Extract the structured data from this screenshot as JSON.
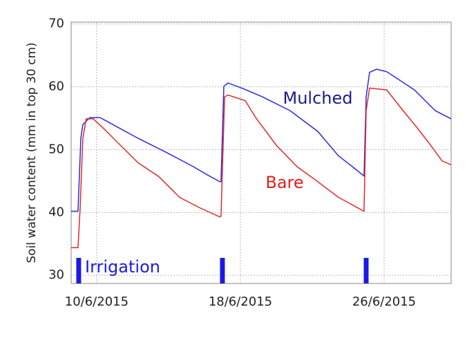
{
  "chart_data": {
    "type": "line",
    "ylabel": "Soil water content (mm in top 30 cm)",
    "xlim": [
      8.58,
      29.73
    ],
    "ylim": [
      28.7,
      70.3
    ],
    "xticks": [
      {
        "value": 10,
        "label": "10/6/2015"
      },
      {
        "value": 18,
        "label": "18/6/2015"
      },
      {
        "value": 26,
        "label": "26/6/2015"
      }
    ],
    "yticks": [
      30,
      40,
      50,
      60,
      70
    ],
    "grid": true,
    "series": [
      {
        "name": "Mulched",
        "color": "#2a2ae0",
        "label_color": "#1a1a8c",
        "x": [
          8.58,
          8.96,
          9.12,
          9.23,
          9.62,
          10.19,
          10.77,
          12.31,
          13.85,
          15.38,
          16.15,
          16.85,
          16.92,
          17.08,
          17.31,
          18.08,
          19.23,
          20.77,
          22.31,
          23.46,
          24.23,
          24.88,
          25.0,
          25.19,
          25.58,
          26.15,
          27.69,
          28.85,
          29.73
        ],
        "values": [
          40.2,
          40.2,
          51.8,
          54.0,
          55.1,
          55.1,
          54.2,
          51.8,
          49.6,
          47.3,
          46.0,
          44.9,
          44.9,
          60.1,
          60.6,
          59.8,
          58.4,
          56.2,
          52.9,
          49.0,
          47.3,
          45.8,
          58.4,
          62.3,
          62.8,
          62.4,
          59.5,
          56.2,
          54.9
        ]
      },
      {
        "name": "Bare",
        "color": "#e02828",
        "label_color": "#e02020",
        "x": [
          8.58,
          8.96,
          9.08,
          9.23,
          9.42,
          9.81,
          10.38,
          11.15,
          12.31,
          13.46,
          14.62,
          15.77,
          16.85,
          16.92,
          17.12,
          17.31,
          18.27,
          18.85,
          20.0,
          21.15,
          22.31,
          23.46,
          24.88,
          25.0,
          25.19,
          26.15,
          26.92,
          27.69,
          28.46,
          29.23,
          29.73
        ],
        "values": [
          34.4,
          34.4,
          40.7,
          51.8,
          54.9,
          54.9,
          53.4,
          51.2,
          47.9,
          45.7,
          42.4,
          40.7,
          39.3,
          39.4,
          58.4,
          58.7,
          57.8,
          55.1,
          50.7,
          47.3,
          44.9,
          42.4,
          40.2,
          56.2,
          59.8,
          59.5,
          56.7,
          54.0,
          51.2,
          48.2,
          47.6
        ]
      }
    ],
    "irrigation": {
      "name": "Irrigation",
      "color": "#1a1ae6",
      "x": [
        9,
        17,
        25
      ]
    }
  }
}
